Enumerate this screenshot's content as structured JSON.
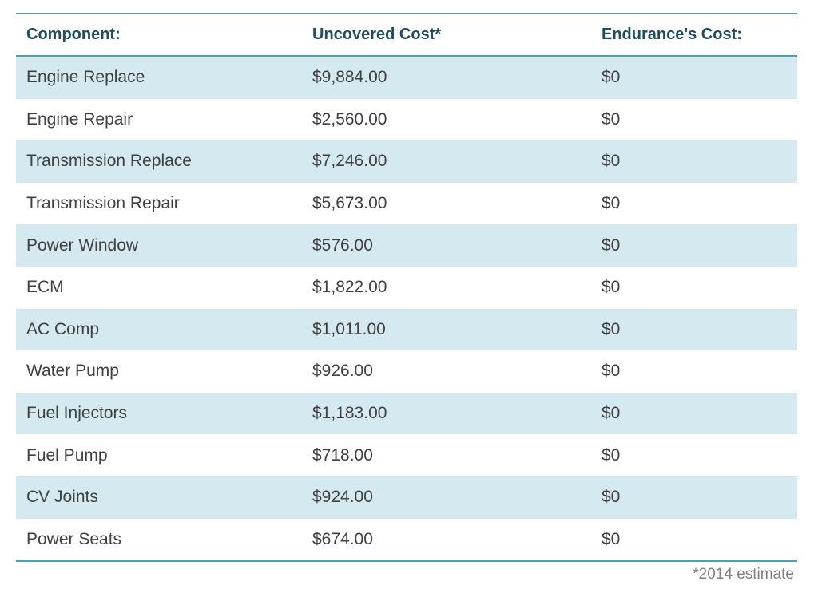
{
  "table": {
    "headers": [
      "Component:",
      "Uncovered Cost*",
      "Endurance's Cost:"
    ],
    "rows": [
      [
        "Engine Replace",
        "$9,884.00",
        "$0"
      ],
      [
        "Engine Repair",
        "$2,560.00",
        "$0"
      ],
      [
        "Transmission Replace",
        "$7,246.00",
        "$0"
      ],
      [
        "Transmission Repair",
        "$5,673.00",
        "$0"
      ],
      [
        "Power Window",
        "$576.00",
        "$0"
      ],
      [
        "ECM",
        "$1,822.00",
        "$0"
      ],
      [
        "AC Comp",
        "$1,011.00",
        "$0"
      ],
      [
        "Water Pump",
        "$926.00",
        "$0"
      ],
      [
        "Fuel Injectors",
        "$1,183.00",
        "$0"
      ],
      [
        "Fuel Pump",
        "$718.00",
        "$0"
      ],
      [
        "CV Joints",
        "$924.00",
        "$0"
      ],
      [
        "Power Seats",
        "$674.00",
        "$0"
      ]
    ]
  },
  "footnote": "*2014 estimate",
  "colors": {
    "accent_rule": "#4aa3b5",
    "header_text": "#1f4e5f",
    "row_shade": "#d5e9f0",
    "body_text": "#404040"
  }
}
